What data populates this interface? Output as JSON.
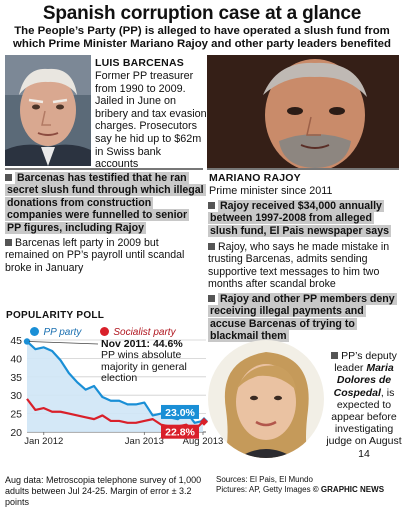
{
  "title": "Spanish corruption case at a glance",
  "subtitle": "The People’s Party (PP) is alleged to have operated a slush fund from which Prime Minister Mariano Rajoy and other party leaders benefited",
  "barcenas": {
    "name": "LUIS BARCENAS",
    "bio": "Former PP treasurer from 1990 to 2009. Jailed in June on bribery and tax evasion charges. Prosecutors say he hid up to $62m in Swiss bank accounts",
    "point1": "Barcenas has testified that he ran secret slush fund through which illegal donations from construction companies were funnelled to senior PP figures, including Rajoy",
    "point2": "Barcenas left party in 2009 but remained on PP’s payroll until scandal broke in January"
  },
  "rajoy": {
    "name": "MARIANO RAJOY",
    "bio": "Prime minister since 2011",
    "point1": "Rajoy received $34,000 annually between 1997-2008 from alleged slush fund, El Pais newspaper says",
    "point2": "Rajoy, who says he made mistake in trusting Barcenas, admits sending supportive text messages to him two months after scandal broke",
    "point3": "Rajoy and other PP members deny receiving illegal payments and accuse Barcenas of trying to blackmail them"
  },
  "cospedal": {
    "caption_pre": "PP’s deputy leader ",
    "caption_name": "Maria Dolores de Cospedal",
    "caption_post": ", is expected to appear before investigating judge on August 14"
  },
  "chart_data": {
    "type": "line",
    "title": "POPULARITY POLL",
    "x": [
      "Nov 2011",
      "Dec 2011",
      "Jan 2012",
      "Feb 2012",
      "Mar 2012",
      "Apr 2012",
      "May 2012",
      "Jun 2012",
      "Jul 2012",
      "Aug 2012",
      "Sep 2012",
      "Oct 2012",
      "Nov 2012",
      "Dec 2012",
      "Jan 2013",
      "Feb 2013",
      "Mar 2013",
      "Apr 2013",
      "May 2013",
      "Jun 2013",
      "Jul 2013",
      "Aug 2013"
    ],
    "series": [
      {
        "name": "PP party",
        "color": "#1a8fd6",
        "values": [
          44.6,
          42.5,
          43.0,
          42.0,
          39.5,
          36.0,
          33.5,
          31.5,
          32.5,
          29.5,
          28.5,
          28.5,
          27.5,
          27.5,
          28.0,
          24.5,
          25.0,
          24.0,
          23.5,
          25.5,
          22.5,
          23.0
        ]
      },
      {
        "name": "Socialist party",
        "color": "#d9202a",
        "values": [
          29.0,
          26.0,
          26.5,
          25.5,
          25.5,
          25.0,
          24.5,
          24.0,
          23.5,
          24.5,
          23.0,
          23.0,
          22.5,
          22.5,
          23.0,
          23.5,
          22.0,
          21.5,
          21.5,
          22.0,
          20.5,
          22.8
        ]
      }
    ],
    "ylim": [
      20,
      45
    ],
    "yticks": [
      45,
      40,
      35,
      30,
      25,
      20
    ],
    "xtick_labels": [
      "Jan 2012",
      "Jan 2013",
      "Aug 2013"
    ],
    "annotation_date": "Nov 2011: 44.6%",
    "annotation_text": "PP wins absolute majority in general election",
    "end_labels": {
      "pp": "23.0%",
      "socialist": "22.8%"
    },
    "legend_placement": "top",
    "grid": true
  },
  "footer": {
    "aug_data": "Aug data: Metroscopia telephone survey of 1,000 adults between Jul 24-25. Margin of error ± 3.2 points",
    "sources": "Sources: El Pais, El Mundo",
    "pictures": "Pictures: AP, Getty Images",
    "credit": "© GRAPHIC NEWS"
  },
  "colors": {
    "pp": "#1a8fd6",
    "socialist": "#d9202a",
    "highlight": "#c8c8c8",
    "rule": "#777777"
  }
}
